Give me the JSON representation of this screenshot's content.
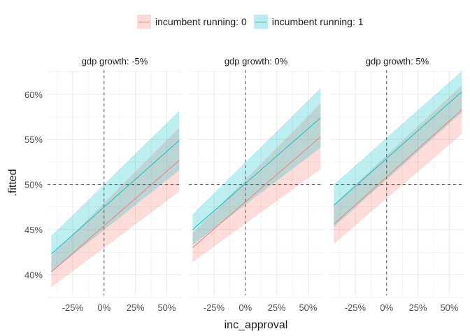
{
  "legend": {
    "items": [
      {
        "label": "incumbent running: 0",
        "fill": "#F8766D",
        "line": "#F8766D"
      },
      {
        "label": "incumbent running: 1",
        "fill": "#00BFC4",
        "line": "#00BFC4"
      }
    ]
  },
  "colors": {
    "series_0": "#F8766D",
    "series_1": "#00BFC4",
    "grid": "#ebebeb",
    "reference_line": "#555555"
  },
  "chart_data": {
    "type": "line",
    "xlabel": "inc_approval",
    "ylabel": ".fitted",
    "x_ticks": [
      -0.25,
      0,
      0.25,
      0.5
    ],
    "x_tick_labels": [
      "-25%",
      "0%",
      "25%",
      "50%"
    ],
    "y_ticks": [
      0.4,
      0.45,
      0.5,
      0.55,
      0.6
    ],
    "y_tick_labels": [
      "40%",
      "45%",
      "50%",
      "55%",
      "60%"
    ],
    "xlim": [
      -0.45,
      0.62
    ],
    "ylim": [
      0.377,
      0.627
    ],
    "reference_lines": {
      "x": 0,
      "y": 0.5
    },
    "grid": true,
    "legend_position": "top",
    "facets": [
      {
        "title": "gdp growth: -5%",
        "series": [
          {
            "incumbent_running": 0,
            "x": [
              -0.42,
              0.6
            ],
            "fit": [
              0.403,
              0.527
            ],
            "lower": [
              0.386,
              0.492
            ],
            "upper": [
              0.421,
              0.563
            ]
          },
          {
            "incumbent_running": 1,
            "x": [
              -0.42,
              0.6
            ],
            "fit": [
              0.423,
              0.549
            ],
            "lower": [
              0.403,
              0.516
            ],
            "upper": [
              0.443,
              0.582
            ]
          }
        ]
      },
      {
        "title": "gdp growth: 0%",
        "series": [
          {
            "incumbent_running": 0,
            "x": [
              -0.42,
              0.6
            ],
            "fit": [
              0.43,
              0.553
            ],
            "lower": [
              0.414,
              0.517
            ],
            "upper": [
              0.446,
              0.59
            ]
          },
          {
            "incumbent_running": 1,
            "x": [
              -0.42,
              0.6
            ],
            "fit": [
              0.45,
              0.574
            ],
            "lower": [
              0.433,
              0.541
            ],
            "upper": [
              0.467,
              0.607
            ]
          }
        ]
      },
      {
        "title": "gdp growth: 5%",
        "series": [
          {
            "incumbent_running": 0,
            "x": [
              -0.42,
              0.6
            ],
            "fit": [
              0.456,
              0.583
            ],
            "lower": [
              0.434,
              0.556
            ],
            "upper": [
              0.478,
              0.61
            ]
          },
          {
            "incumbent_running": 1,
            "x": [
              -0.42,
              0.6
            ],
            "fit": [
              0.477,
              0.603
            ],
            "lower": [
              0.453,
              0.58
            ],
            "upper": [
              0.5,
              0.626
            ]
          }
        ]
      }
    ]
  }
}
